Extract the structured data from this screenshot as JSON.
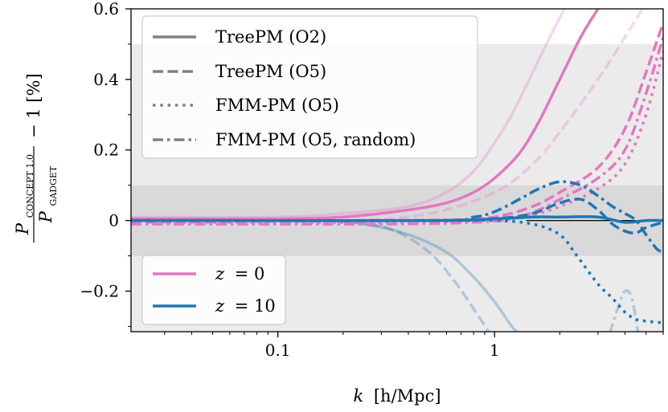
{
  "chart_data": {
    "type": "line",
    "xscale": "log",
    "xlim": [
      0.021,
      6.0
    ],
    "ylim": [
      -0.315,
      0.6
    ],
    "x_ticks": [
      {
        "value": 0.1,
        "label": "0.1"
      },
      {
        "value": 1,
        "label": "1"
      }
    ],
    "y_ticks": [
      {
        "value": -0.2,
        "label": "−0.2"
      },
      {
        "value": 0,
        "label": "0"
      },
      {
        "value": 0.2,
        "label": "0.2"
      },
      {
        "value": 0.4,
        "label": "0.4"
      },
      {
        "value": 0.6,
        "label": "0.6"
      }
    ],
    "xlabel": {
      "k": "k",
      "unit": "[h/Mpc]"
    },
    "ylabel": {
      "numerator": "P",
      "numerator_sub": "CONCEPT 1.0",
      "denominator": "P",
      "denominator_sub": "GADGET",
      "suffix": "− 1 [%]"
    },
    "bands": [
      {
        "y0": -0.1,
        "y1": 0.1,
        "color": "#d9d9d9"
      },
      {
        "y0": 0.1,
        "y1": 0.5,
        "color": "#ebebeb"
      },
      {
        "y0": -0.315,
        "y1": -0.1,
        "color": "#ebebeb"
      }
    ],
    "zero_line": 0,
    "colors": {
      "z0": "#e377c2",
      "z10": "#1f77b4"
    },
    "linestyle_legend": [
      {
        "label": "TreePM (O2)",
        "style": "solid"
      },
      {
        "label": "TreePM (O5)",
        "style": "dashed"
      },
      {
        "label": "FMM-PM (O5)",
        "style": "dotted"
      },
      {
        "label": "FMM-PM (O5, random)",
        "style": "dashdot"
      }
    ],
    "color_legend": [
      {
        "label": "z = 0",
        "var": "z",
        "eq": "= 0",
        "color": "#e377c2"
      },
      {
        "label": "z = 10",
        "var": "z",
        "eq": "= 10",
        "color": "#1f77b4"
      }
    ],
    "series": [
      {
        "name": "TreePM (O2) z=0 faint",
        "color": "#e377c2",
        "style": "solid",
        "opacity": 0.3,
        "points": [
          [
            0.021,
            0.01
          ],
          [
            0.1,
            0.01
          ],
          [
            0.2,
            0.02
          ],
          [
            0.4,
            0.04
          ],
          [
            0.6,
            0.08
          ],
          [
            0.8,
            0.14
          ],
          [
            1.0,
            0.22
          ],
          [
            1.2,
            0.3
          ],
          [
            1.5,
            0.42
          ],
          [
            1.8,
            0.52
          ],
          [
            2.1,
            0.6
          ]
        ]
      },
      {
        "name": "TreePM (O5) z=0 faint",
        "color": "#e377c2",
        "style": "dashed",
        "opacity": 0.3,
        "points": [
          [
            0.021,
            0.0
          ],
          [
            0.2,
            0.0
          ],
          [
            0.5,
            0.02
          ],
          [
            1.0,
            0.08
          ],
          [
            1.5,
            0.16
          ],
          [
            2.0,
            0.25
          ],
          [
            3.0,
            0.4
          ],
          [
            4.0,
            0.52
          ],
          [
            4.8,
            0.6
          ]
        ]
      },
      {
        "name": "TreePM (O2) z=10 faint",
        "color": "#1f77b4",
        "style": "solid",
        "opacity": 0.3,
        "points": [
          [
            0.021,
            0.0
          ],
          [
            0.15,
            0.0
          ],
          [
            0.25,
            -0.01
          ],
          [
            0.4,
            -0.04
          ],
          [
            0.6,
            -0.09
          ],
          [
            0.8,
            -0.16
          ],
          [
            1.0,
            -0.23
          ],
          [
            1.2,
            -0.3
          ],
          [
            1.3,
            -0.32
          ]
        ]
      },
      {
        "name": "TreePM (O5) z=10 faint",
        "color": "#1f77b4",
        "style": "dashed",
        "opacity": 0.3,
        "points": [
          [
            0.021,
            0.0
          ],
          [
            0.15,
            0.0
          ],
          [
            0.25,
            -0.01
          ],
          [
            0.35,
            -0.03
          ],
          [
            0.5,
            -0.09
          ],
          [
            0.65,
            -0.17
          ],
          [
            0.8,
            -0.25
          ],
          [
            0.95,
            -0.32
          ]
        ]
      },
      {
        "name": "FMM-PM (O5, random) z=10 faint",
        "color": "#1f77b4",
        "style": "dashdot",
        "opacity": 0.3,
        "points": [
          [
            3.4,
            -0.32
          ],
          [
            3.7,
            -0.25
          ],
          [
            4.0,
            -0.2
          ],
          [
            4.3,
            -0.22
          ],
          [
            4.6,
            -0.32
          ]
        ]
      },
      {
        "name": "TreePM (O2) z=0",
        "color": "#e377c2",
        "style": "solid",
        "opacity": 1,
        "points": [
          [
            0.021,
            0.005
          ],
          [
            0.1,
            0.005
          ],
          [
            0.2,
            0.01
          ],
          [
            0.4,
            0.03
          ],
          [
            0.6,
            0.05
          ],
          [
            0.8,
            0.08
          ],
          [
            1.0,
            0.12
          ],
          [
            1.3,
            0.19
          ],
          [
            1.6,
            0.28
          ],
          [
            2.0,
            0.4
          ],
          [
            2.5,
            0.52
          ],
          [
            3.0,
            0.6
          ]
        ]
      },
      {
        "name": "TreePM (O5) z=0",
        "color": "#e377c2",
        "style": "dashed",
        "opacity": 1,
        "points": [
          [
            0.021,
            -0.005
          ],
          [
            0.3,
            0.0
          ],
          [
            0.6,
            0.0
          ],
          [
            1.0,
            0.01
          ],
          [
            1.5,
            0.04
          ],
          [
            2.0,
            0.08
          ],
          [
            3.0,
            0.15
          ],
          [
            4.0,
            0.26
          ],
          [
            5.0,
            0.42
          ],
          [
            6.0,
            0.56
          ]
        ]
      },
      {
        "name": "FMM-PM (O5) z=0",
        "color": "#e377c2",
        "style": "dotted",
        "opacity": 1,
        "points": [
          [
            0.021,
            -0.005
          ],
          [
            0.3,
            -0.005
          ],
          [
            0.8,
            0.0
          ],
          [
            1.2,
            0.005
          ],
          [
            1.6,
            0.02
          ],
          [
            2.0,
            0.04
          ],
          [
            3.0,
            0.09
          ],
          [
            4.0,
            0.16
          ],
          [
            5.0,
            0.3
          ],
          [
            6.0,
            0.48
          ]
        ]
      },
      {
        "name": "FMM-PM (O5, random) z=0",
        "color": "#e377c2",
        "style": "dashdot",
        "opacity": 1,
        "points": [
          [
            0.021,
            -0.01
          ],
          [
            0.3,
            -0.01
          ],
          [
            0.8,
            -0.005
          ],
          [
            1.2,
            0.005
          ],
          [
            1.6,
            0.03
          ],
          [
            2.0,
            0.06
          ],
          [
            3.0,
            0.12
          ],
          [
            4.0,
            0.2
          ],
          [
            5.0,
            0.36
          ],
          [
            6.0,
            0.52
          ]
        ]
      },
      {
        "name": "TreePM (O2) z=10",
        "color": "#1f77b4",
        "style": "solid",
        "opacity": 1,
        "points": [
          [
            0.021,
            0.0
          ],
          [
            0.5,
            0.0
          ],
          [
            1.0,
            0.005
          ],
          [
            1.5,
            0.01
          ],
          [
            2.0,
            0.01
          ],
          [
            3.0,
            0.01
          ],
          [
            4.0,
            -0.005
          ],
          [
            5.0,
            0.0
          ],
          [
            6.0,
            0.0
          ]
        ]
      },
      {
        "name": "TreePM (O5) z=10",
        "color": "#1f77b4",
        "style": "dashed",
        "opacity": 1,
        "points": [
          [
            0.021,
            0.0
          ],
          [
            0.5,
            0.0
          ],
          [
            1.0,
            0.005
          ],
          [
            1.5,
            0.02
          ],
          [
            2.0,
            0.05
          ],
          [
            2.5,
            0.06
          ],
          [
            3.0,
            0.03
          ],
          [
            3.5,
            -0.01
          ],
          [
            4.0,
            -0.03
          ],
          [
            4.5,
            -0.035
          ],
          [
            5.0,
            -0.02
          ],
          [
            6.0,
            -0.005
          ]
        ]
      },
      {
        "name": "FMM-PM (O5) z=10",
        "color": "#1f77b4",
        "style": "dotted",
        "opacity": 1,
        "points": [
          [
            0.021,
            0.0
          ],
          [
            0.5,
            0.0
          ],
          [
            1.0,
            0.0
          ],
          [
            1.5,
            -0.01
          ],
          [
            2.0,
            -0.04
          ],
          [
            2.4,
            -0.1
          ],
          [
            3.0,
            -0.18
          ],
          [
            3.5,
            -0.22
          ],
          [
            4.0,
            -0.26
          ],
          [
            4.5,
            -0.28
          ],
          [
            5.0,
            -0.285
          ],
          [
            6.0,
            -0.29
          ]
        ]
      },
      {
        "name": "FMM-PM (O5, random) z=10",
        "color": "#1f77b4",
        "style": "dashdot",
        "opacity": 1,
        "points": [
          [
            0.021,
            0.0
          ],
          [
            0.5,
            0.0
          ],
          [
            0.8,
            0.01
          ],
          [
            1.0,
            0.025
          ],
          [
            1.3,
            0.06
          ],
          [
            1.6,
            0.09
          ],
          [
            2.0,
            0.11
          ],
          [
            2.5,
            0.1
          ],
          [
            3.0,
            0.07
          ],
          [
            3.5,
            0.04
          ],
          [
            4.0,
            0.02
          ],
          [
            4.5,
            0.0
          ],
          [
            5.0,
            -0.04
          ],
          [
            5.6,
            -0.08
          ],
          [
            6.0,
            -0.09
          ]
        ]
      }
    ]
  }
}
